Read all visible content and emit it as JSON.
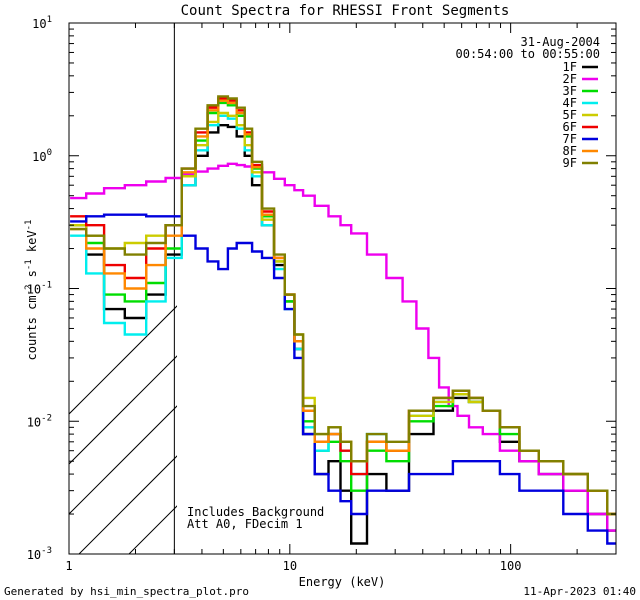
{
  "chart_data": {
    "type": "line",
    "title": "Count Spectra for RHESSI Front Segments",
    "xlabel": "Energy (keV)",
    "ylabel_parts": [
      "counts cm",
      "-2",
      " s",
      "-1",
      " keV",
      "-1"
    ],
    "xscale": "log",
    "yscale": "log",
    "xlim": [
      1,
      300
    ],
    "ylim": [
      0.001,
      10
    ],
    "x_ticks": [
      {
        "value": 1,
        "label": "1"
      },
      {
        "value": 10,
        "label": "10"
      },
      {
        "value": 100,
        "label": "100"
      }
    ],
    "y_ticks": [
      {
        "value": 0.001,
        "base": "10",
        "exp": "-3"
      },
      {
        "value": 0.01,
        "base": "10",
        "exp": "-2"
      },
      {
        "value": 0.1,
        "base": "10",
        "exp": "-1"
      },
      {
        "value": 1,
        "base": "10",
        "exp": "0"
      },
      {
        "value": 10,
        "base": "10",
        "exp": "1"
      }
    ],
    "hatched_region": [
      1,
      3
    ],
    "date": "31-Aug-2004",
    "time_range": "00:54:00 to 00:55:00",
    "annotation_lines": [
      "Includes Background",
      "Att A0, FDecim 1"
    ],
    "series": [
      {
        "name": "1F",
        "color": "#000000",
        "x": [
          1.1,
          1.3,
          1.6,
          2.0,
          2.5,
          3.0,
          3.5,
          4.0,
          4.5,
          5.0,
          5.5,
          6.0,
          6.5,
          7.0,
          8.0,
          9.0,
          10.0,
          11.0,
          12.0,
          14.0,
          16.0,
          18.0,
          20.0,
          25.0,
          30.0,
          40.0,
          50.0,
          60.0,
          70.0,
          80.0,
          100.0,
          120.0,
          150.0,
          200.0,
          250.0,
          300.0
        ],
        "y": [
          0.3,
          0.18,
          0.07,
          0.06,
          0.09,
          0.18,
          0.6,
          1.0,
          1.5,
          1.7,
          1.65,
          1.4,
          1.0,
          0.6,
          0.3,
          0.15,
          0.08,
          0.035,
          0.008,
          0.004,
          0.005,
          0.003,
          0.0012,
          0.004,
          0.003,
          0.008,
          0.012,
          0.015,
          0.014,
          0.012,
          0.007,
          0.005,
          0.004,
          0.003,
          0.002,
          0.0015
        ]
      },
      {
        "name": "2F",
        "color": "#ee00ee",
        "x": [
          1.1,
          1.3,
          1.6,
          2.0,
          2.5,
          3.0,
          3.5,
          4.0,
          4.5,
          5.0,
          5.5,
          6.0,
          6.5,
          7.0,
          8.0,
          9.0,
          10.0,
          11.0,
          12.0,
          14.0,
          16.0,
          18.0,
          20.0,
          25.0,
          30.0,
          35.0,
          40.0,
          45.0,
          50.0,
          55.0,
          60.0,
          70.0,
          80.0,
          100.0,
          120.0,
          150.0,
          200.0,
          250.0,
          300.0
        ],
        "y": [
          0.48,
          0.52,
          0.57,
          0.6,
          0.64,
          0.68,
          0.72,
          0.76,
          0.8,
          0.84,
          0.87,
          0.85,
          0.83,
          0.81,
          0.75,
          0.67,
          0.6,
          0.55,
          0.5,
          0.42,
          0.35,
          0.3,
          0.26,
          0.18,
          0.12,
          0.08,
          0.05,
          0.03,
          0.018,
          0.013,
          0.011,
          0.009,
          0.008,
          0.006,
          0.005,
          0.004,
          0.003,
          0.002,
          0.0015
        ]
      },
      {
        "name": "3F",
        "color": "#00dd00",
        "x": [
          1.1,
          1.3,
          1.6,
          2.0,
          2.5,
          3.0,
          3.5,
          4.0,
          4.5,
          5.0,
          5.5,
          6.0,
          6.5,
          7.0,
          8.0,
          9.0,
          10.0,
          11.0,
          12.0,
          14.0,
          16.0,
          18.0,
          20.0,
          25.0,
          30.0,
          40.0,
          50.0,
          60.0,
          70.0,
          80.0,
          100.0,
          120.0,
          150.0,
          200.0,
          250.0,
          300.0
        ],
        "y": [
          0.3,
          0.22,
          0.09,
          0.08,
          0.11,
          0.2,
          0.7,
          1.3,
          2.1,
          2.5,
          2.4,
          2.0,
          1.4,
          0.8,
          0.35,
          0.16,
          0.08,
          0.04,
          0.01,
          0.006,
          0.007,
          0.005,
          0.003,
          0.006,
          0.005,
          0.01,
          0.013,
          0.016,
          0.014,
          0.012,
          0.008,
          0.006,
          0.005,
          0.004,
          0.003,
          0.002
        ]
      },
      {
        "name": "4F",
        "color": "#00eeee",
        "x": [
          1.1,
          1.3,
          1.6,
          2.0,
          2.5,
          3.0,
          3.5,
          4.0,
          4.5,
          5.0,
          5.5,
          6.0,
          6.5,
          7.0,
          8.0,
          9.0,
          10.0,
          11.0,
          12.0,
          14.0,
          16.0,
          18.0,
          20.0,
          25.0,
          30.0,
          40.0,
          50.0,
          60.0,
          70.0,
          80.0,
          100.0,
          120.0,
          150.0,
          200.0,
          250.0,
          300.0
        ],
        "y": [
          0.25,
          0.13,
          0.055,
          0.045,
          0.08,
          0.17,
          0.6,
          1.1,
          1.7,
          2.0,
          1.9,
          1.6,
          1.1,
          0.7,
          0.3,
          0.14,
          0.07,
          0.035,
          0.009,
          0.006,
          0.008,
          0.006,
          0.004,
          0.008,
          0.006,
          0.011,
          0.014,
          0.017,
          0.015,
          0.012,
          0.009,
          0.006,
          0.005,
          0.004,
          0.003,
          0.002
        ]
      },
      {
        "name": "5F",
        "color": "#cccc00",
        "x": [
          1.1,
          1.3,
          1.6,
          2.0,
          2.5,
          3.0,
          3.5,
          4.0,
          4.5,
          5.0,
          5.5,
          6.0,
          6.5,
          7.0,
          8.0,
          9.0,
          10.0,
          11.0,
          12.0,
          14.0,
          16.0,
          18.0,
          20.0,
          25.0,
          30.0,
          40.0,
          50.0,
          60.0,
          70.0,
          80.0,
          100.0,
          120.0,
          150.0,
          200.0,
          250.0,
          300.0
        ],
        "y": [
          0.3,
          0.25,
          0.2,
          0.22,
          0.25,
          0.3,
          0.7,
          1.2,
          1.8,
          2.1,
          2.0,
          1.7,
          1.2,
          0.75,
          0.33,
          0.16,
          0.09,
          0.045,
          0.015,
          0.008,
          0.009,
          0.007,
          0.005,
          0.007,
          0.006,
          0.011,
          0.014,
          0.016,
          0.014,
          0.012,
          0.009,
          0.006,
          0.005,
          0.004,
          0.003,
          0.002
        ]
      },
      {
        "name": "6F",
        "color": "#ee0000",
        "x": [
          1.1,
          1.3,
          1.6,
          2.0,
          2.5,
          3.0,
          3.5,
          4.0,
          4.5,
          5.0,
          5.5,
          6.0,
          6.5,
          7.0,
          8.0,
          9.0,
          10.0,
          11.0,
          12.0,
          14.0,
          16.0,
          18.0,
          20.0,
          25.0,
          30.0,
          40.0,
          50.0,
          60.0,
          70.0,
          80.0,
          100.0,
          120.0,
          150.0,
          200.0,
          250.0,
          300.0
        ],
        "y": [
          0.35,
          0.3,
          0.15,
          0.12,
          0.2,
          0.3,
          0.8,
          1.5,
          2.3,
          2.7,
          2.6,
          2.2,
          1.5,
          0.85,
          0.38,
          0.17,
          0.09,
          0.04,
          0.012,
          0.007,
          0.008,
          0.006,
          0.004,
          0.007,
          0.006,
          0.012,
          0.015,
          0.017,
          0.015,
          0.012,
          0.009,
          0.006,
          0.005,
          0.004,
          0.003,
          0.002
        ]
      },
      {
        "name": "7F",
        "color": "#0000dd",
        "x": [
          1.1,
          1.3,
          1.6,
          2.0,
          2.5,
          3.0,
          3.5,
          4.0,
          4.5,
          5.0,
          5.5,
          6.0,
          6.5,
          7.0,
          8.0,
          9.0,
          10.0,
          11.0,
          12.0,
          14.0,
          16.0,
          18.0,
          20.0,
          25.0,
          30.0,
          40.0,
          50.0,
          60.0,
          70.0,
          80.0,
          100.0,
          120.0,
          150.0,
          200.0,
          250.0,
          300.0
        ],
        "y": [
          0.32,
          0.35,
          0.36,
          0.36,
          0.35,
          0.35,
          0.25,
          0.2,
          0.16,
          0.14,
          0.2,
          0.22,
          0.22,
          0.19,
          0.17,
          0.12,
          0.07,
          0.03,
          0.008,
          0.004,
          0.003,
          0.0025,
          0.002,
          0.003,
          0.003,
          0.004,
          0.004,
          0.005,
          0.005,
          0.005,
          0.004,
          0.003,
          0.003,
          0.002,
          0.0015,
          0.0012
        ]
      },
      {
        "name": "8F",
        "color": "#ff8800",
        "x": [
          1.1,
          1.3,
          1.6,
          2.0,
          2.5,
          3.0,
          3.5,
          4.0,
          4.5,
          5.0,
          5.5,
          6.0,
          6.5,
          7.0,
          8.0,
          9.0,
          10.0,
          11.0,
          12.0,
          14.0,
          16.0,
          18.0,
          20.0,
          25.0,
          30.0,
          40.0,
          50.0,
          60.0,
          70.0,
          80.0,
          100.0,
          120.0,
          150.0,
          200.0,
          250.0,
          300.0
        ],
        "y": [
          0.28,
          0.2,
          0.13,
          0.1,
          0.15,
          0.25,
          0.75,
          1.4,
          2.2,
          2.6,
          2.5,
          2.1,
          1.45,
          0.82,
          0.36,
          0.17,
          0.09,
          0.04,
          0.012,
          0.007,
          0.008,
          0.007,
          0.005,
          0.007,
          0.006,
          0.012,
          0.015,
          0.017,
          0.015,
          0.012,
          0.009,
          0.006,
          0.005,
          0.004,
          0.003,
          0.002
        ]
      },
      {
        "name": "9F",
        "color": "#808000",
        "x": [
          1.1,
          1.3,
          1.6,
          2.0,
          2.5,
          3.0,
          3.5,
          4.0,
          4.5,
          5.0,
          5.5,
          6.0,
          6.5,
          7.0,
          8.0,
          9.0,
          10.0,
          11.0,
          12.0,
          14.0,
          16.0,
          18.0,
          20.0,
          25.0,
          30.0,
          40.0,
          50.0,
          60.0,
          70.0,
          80.0,
          100.0,
          120.0,
          150.0,
          200.0,
          250.0,
          300.0
        ],
        "y": [
          0.28,
          0.25,
          0.2,
          0.18,
          0.22,
          0.3,
          0.8,
          1.6,
          2.4,
          2.8,
          2.7,
          2.3,
          1.6,
          0.9,
          0.4,
          0.18,
          0.09,
          0.045,
          0.013,
          0.008,
          0.009,
          0.007,
          0.005,
          0.008,
          0.007,
          0.012,
          0.015,
          0.017,
          0.015,
          0.012,
          0.009,
          0.006,
          0.005,
          0.004,
          0.003,
          0.002
        ]
      }
    ]
  },
  "footer": {
    "generated_by": "Generated by hsi_min_spectra_plot.pro",
    "timestamp": "11-Apr-2023 01:40"
  }
}
